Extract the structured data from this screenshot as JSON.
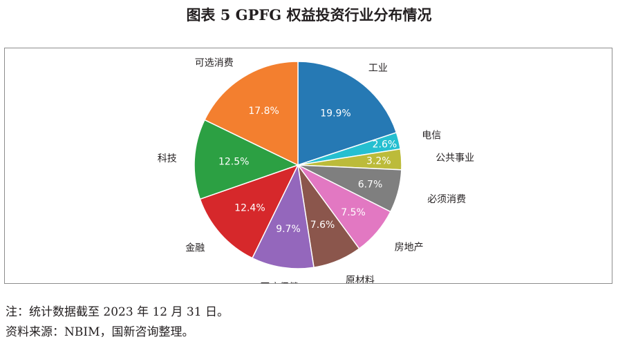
{
  "figure_title": "图表 5 GPFG 权益投资行业分布情况",
  "notes": {
    "note": "注：统计数据截至 2023 年 12 月 31 日。",
    "source": "资料来源：NBIM，国新咨询整理。"
  },
  "chart_data": {
    "type": "pie",
    "title": "",
    "categories": [
      "工业",
      "电信",
      "公共事业",
      "必须消费",
      "房地产",
      "原材料",
      "医疗保健",
      "金融",
      "科技",
      "可选消费"
    ],
    "values": [
      19.9,
      2.6,
      3.2,
      6.7,
      7.5,
      7.6,
      9.7,
      12.4,
      12.5,
      17.8
    ],
    "value_labels": [
      "19.9%",
      "2.6%",
      "3.2%",
      "6.7%",
      "7.5%",
      "7.6%",
      "9.7%",
      "12.4%",
      "12.5%",
      "17.8%"
    ],
    "colors": [
      "#2679b4",
      "#25bfd0",
      "#bcbb3a",
      "#7f7f7f",
      "#e278c2",
      "#8b564c",
      "#9467bc",
      "#d6282b",
      "#2ca043",
      "#f37f2f"
    ],
    "start_angle_deg": 0,
    "direction": "clockwise from 12 o'clock"
  }
}
